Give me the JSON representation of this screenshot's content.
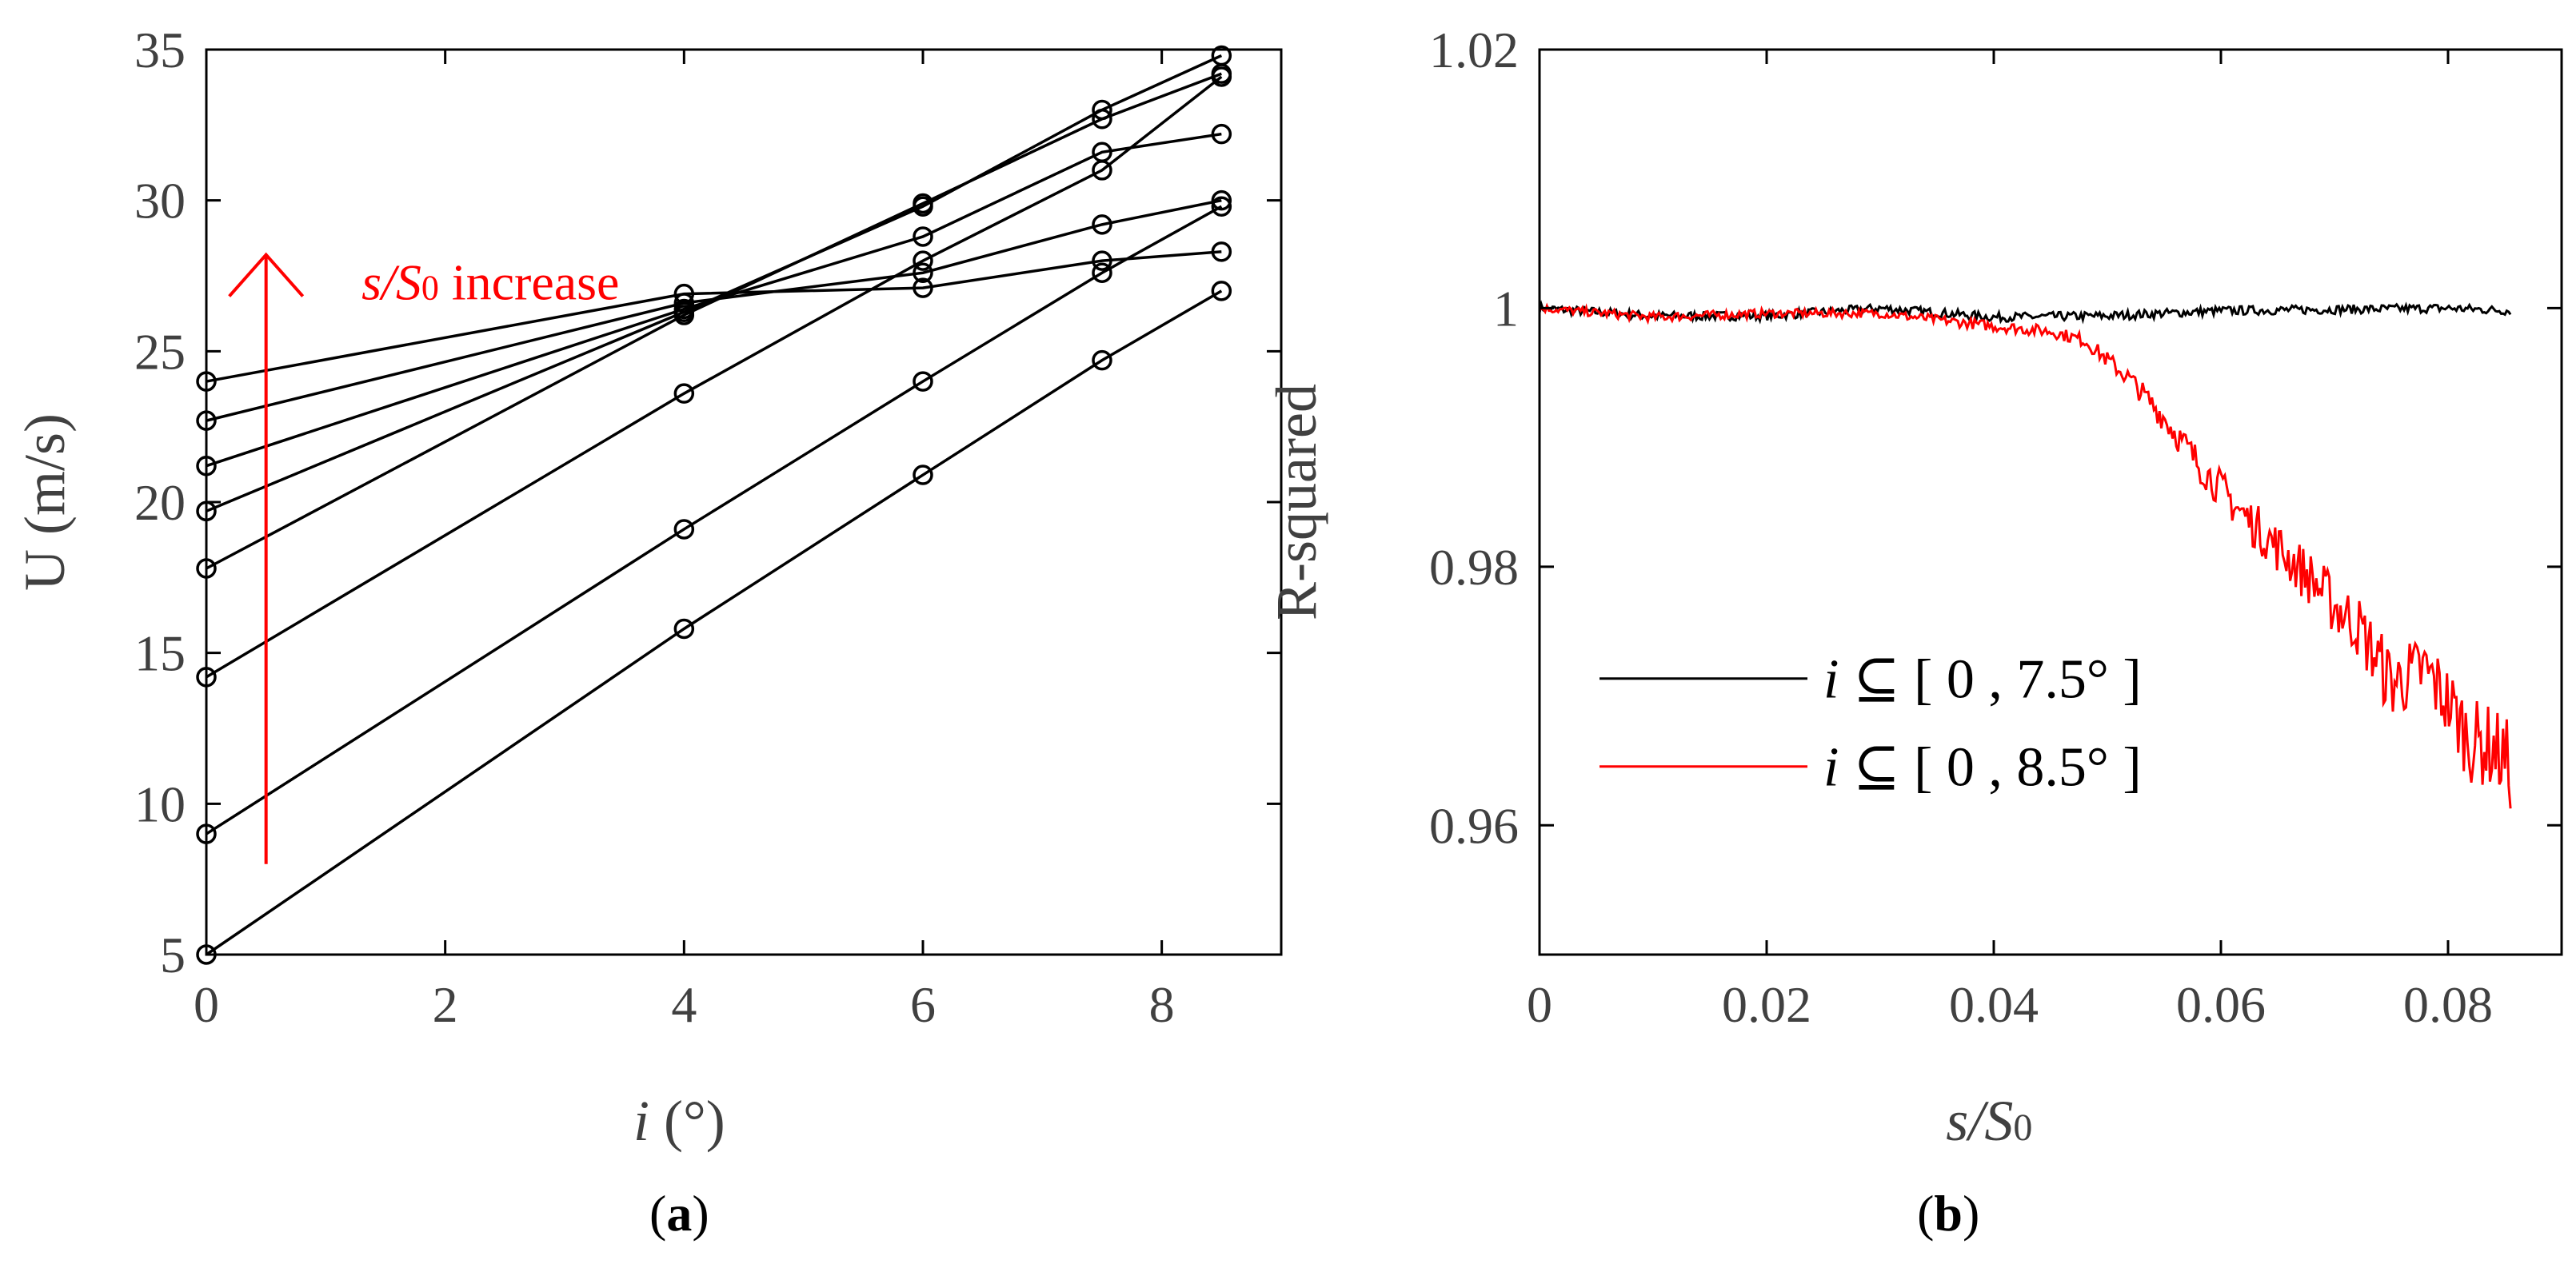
{
  "chart_data": [
    {
      "id": "a",
      "type": "line",
      "panel_label": "a",
      "xlabel_var": "i",
      "xlabel_unit": " (°)",
      "ylabel": "U (m/s)",
      "xlim": [
        0,
        9
      ],
      "ylim": [
        5,
        35
      ],
      "xticks": [
        0,
        2,
        4,
        6,
        8
      ],
      "yticks": [
        5,
        10,
        15,
        20,
        25,
        30,
        35
      ],
      "x": [
        0,
        4,
        6,
        7.5,
        8.5
      ],
      "marker": "circle",
      "series": [
        {
          "name": "curve-1",
          "values": [
            5.0,
            15.8,
            20.9,
            24.7,
            27.0
          ]
        },
        {
          "name": "curve-2",
          "values": [
            9.0,
            19.1,
            24.0,
            27.6,
            29.8
          ]
        },
        {
          "name": "curve-3",
          "values": [
            14.2,
            23.6,
            28.0,
            31.0,
            34.1
          ]
        },
        {
          "name": "curve-4",
          "values": [
            17.8,
            26.2,
            29.9,
            32.7,
            34.2
          ]
        },
        {
          "name": "curve-5",
          "values": [
            19.7,
            26.3,
            29.8,
            33.0,
            34.8
          ]
        },
        {
          "name": "curve-6",
          "values": [
            21.2,
            26.4,
            28.8,
            31.6,
            32.2
          ]
        },
        {
          "name": "curve-7",
          "values": [
            22.7,
            26.6,
            27.6,
            29.2,
            30.0
          ]
        },
        {
          "name": "curve-8",
          "values": [
            24.0,
            26.9,
            27.1,
            28.0,
            28.3
          ]
        }
      ],
      "annotation": {
        "text_italic": "s/S",
        "text_subscript": "0",
        "text_rest": " increase",
        "color": "#ff0000",
        "arrow_from": [
          0.5,
          8
        ],
        "arrow_to": [
          0.5,
          28.2
        ],
        "text_anchor": [
          1.3,
          27.3
        ]
      }
    },
    {
      "id": "b",
      "type": "line",
      "panel_label": "b",
      "xlabel_var": "s/S",
      "xlabel_subscript": "0",
      "ylabel": "R-squared",
      "xlim": [
        0,
        0.09
      ],
      "ylim": [
        0.95,
        1.02
      ],
      "xticks": [
        0,
        0.02,
        0.04,
        0.06,
        0.08
      ],
      "xtick_labels": [
        "0",
        "0.02",
        "0.04",
        "0.06",
        "0.08"
      ],
      "yticks": [
        0.96,
        0.98,
        1.0,
        1.02
      ],
      "ytick_labels": [
        "0.96",
        "0.98",
        "1",
        "1.02"
      ],
      "x_start": 0.0,
      "x_end": 0.0855,
      "series": [
        {
          "name": "i ⊆ [ 0 , 7.5° ]",
          "legend_var": "i",
          "legend_rest": " ⊆ [ 0 , 7.5° ]",
          "color": "#000000",
          "x": [
            0,
            0.01,
            0.02,
            0.03,
            0.04,
            0.05,
            0.06,
            0.07,
            0.08,
            0.0855
          ],
          "values": [
            1.0,
            0.9994,
            0.9994,
            1.0,
            0.9993,
            0.9994,
            0.9998,
            0.9999,
            1.0,
            0.9998
          ]
        },
        {
          "name": "i ⊆ [ 0 , 8.5° ]",
          "legend_var": "i",
          "legend_rest": " ⊆ [ 0 , 8.5° ]",
          "color": "#ff0000",
          "x": [
            0,
            0.01,
            0.02,
            0.03,
            0.04,
            0.045,
            0.048,
            0.052,
            0.055,
            0.058,
            0.06,
            0.062,
            0.065,
            0.068,
            0.07,
            0.072,
            0.075,
            0.078,
            0.08,
            0.082,
            0.084,
            0.0855
          ],
          "values": [
            1.0,
            0.9993,
            0.9996,
            0.9996,
            0.9986,
            0.9982,
            0.9975,
            0.9945,
            0.9915,
            0.988,
            0.986,
            0.984,
            0.9815,
            0.979,
            0.977,
            0.9755,
            0.971,
            0.972,
            0.9695,
            0.9665,
            0.966,
            0.9645
          ]
        }
      ],
      "legend_position": "bottom-left"
    }
  ]
}
